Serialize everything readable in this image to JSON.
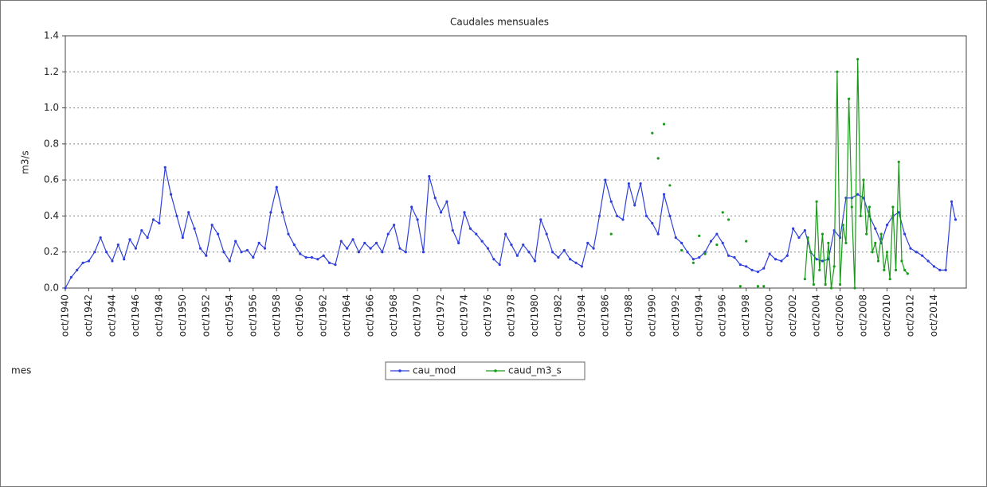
{
  "chart_data": {
    "type": "line",
    "title": "Caudales mensuales",
    "x_label": "mes",
    "y_label": "m3/s",
    "xlim": [
      "1940-10",
      "2017-07"
    ],
    "ylim": [
      0,
      1.4
    ],
    "yticks": [
      {
        "value": 0,
        "label": "0.0"
      },
      0.2,
      0.4,
      0.6,
      0.8,
      {
        "value": 1,
        "label": "1.0"
      },
      1.2,
      1.4
    ],
    "xticks": [
      {
        "value": "1940-10",
        "label": "oct/1940"
      },
      {
        "value": "1942-10",
        "label": "oct/1942"
      },
      {
        "value": "1944-10",
        "label": "oct/1944"
      },
      {
        "value": "1946-10",
        "label": "oct/1946"
      },
      {
        "value": "1948-10",
        "label": "oct/1948"
      },
      {
        "value": "1950-10",
        "label": "oct/1950"
      },
      {
        "value": "1952-10",
        "label": "oct/1952"
      },
      {
        "value": "1954-10",
        "label": "oct/1954"
      },
      {
        "value": "1956-10",
        "label": "oct/1956"
      },
      {
        "value": "1958-10",
        "label": "oct/1958"
      },
      {
        "value": "1960-10",
        "label": "oct/1960"
      },
      {
        "value": "1962-10",
        "label": "oct/1962"
      },
      {
        "value": "1964-10",
        "label": "oct/1964"
      },
      {
        "value": "1966-10",
        "label": "oct/1966"
      },
      {
        "value": "1968-10",
        "label": "oct/1968"
      },
      {
        "value": "1970-10",
        "label": "oct/1970"
      },
      {
        "value": "1972-10",
        "label": "oct/1972"
      },
      {
        "value": "1974-10",
        "label": "oct/1974"
      },
      {
        "value": "1976-10",
        "label": "oct/1976"
      },
      {
        "value": "1978-10",
        "label": "oct/1978"
      },
      {
        "value": "1980-10",
        "label": "oct/1980"
      },
      {
        "value": "1982-10",
        "label": "oct/1982"
      },
      {
        "value": "1984-10",
        "label": "oct/1984"
      },
      {
        "value": "1986-10",
        "label": "oct/1986"
      },
      {
        "value": "1988-10",
        "label": "oct/1988"
      },
      {
        "value": "1990-10",
        "label": "oct/1990"
      },
      {
        "value": "1992-10",
        "label": "oct/1992"
      },
      {
        "value": "1994-10",
        "label": "oct/1994"
      },
      {
        "value": "1996-10",
        "label": "oct/1996"
      },
      {
        "value": "1998-10",
        "label": "oct/1998"
      },
      {
        "value": "2000-10",
        "label": "oct/2000"
      },
      {
        "value": "2002-10",
        "label": "oct/2002"
      },
      {
        "value": "2004-10",
        "label": "oct/2004"
      },
      {
        "value": "2006-10",
        "label": "oct/2006"
      },
      {
        "value": "2008-10",
        "label": "oct/2008"
      },
      {
        "value": "2010-10",
        "label": "oct/2010"
      },
      {
        "value": "2012-10",
        "label": "oct/2012"
      },
      {
        "value": "2014-10",
        "label": "oct/2014"
      }
    ],
    "grid": true,
    "legend": "bottom",
    "series": [
      {
        "name": "cau_mod",
        "color": "#2f3fdc",
        "x": [
          "1940-10",
          "1941-04",
          "1941-10",
          "1942-04",
          "1942-10",
          "1943-04",
          "1943-10",
          "1944-04",
          "1944-10",
          "1945-04",
          "1945-10",
          "1946-04",
          "1946-10",
          "1947-04",
          "1947-10",
          "1948-04",
          "1948-10",
          "1949-04",
          "1949-10",
          "1950-04",
          "1950-10",
          "1951-04",
          "1951-10",
          "1952-04",
          "1952-10",
          "1953-04",
          "1953-10",
          "1954-04",
          "1954-10",
          "1955-04",
          "1955-10",
          "1956-04",
          "1956-10",
          "1957-04",
          "1957-10",
          "1958-04",
          "1958-10",
          "1959-04",
          "1959-10",
          "1960-04",
          "1960-10",
          "1961-04",
          "1961-10",
          "1962-04",
          "1962-10",
          "1963-04",
          "1963-10",
          "1964-04",
          "1964-10",
          "1965-04",
          "1965-10",
          "1966-04",
          "1966-10",
          "1967-04",
          "1967-10",
          "1968-04",
          "1968-10",
          "1969-04",
          "1969-10",
          "1970-04",
          "1970-10",
          "1971-04",
          "1971-10",
          "1972-04",
          "1972-10",
          "1973-04",
          "1973-10",
          "1974-04",
          "1974-10",
          "1975-04",
          "1975-10",
          "1976-04",
          "1976-10",
          "1977-04",
          "1977-10",
          "1978-04",
          "1978-10",
          "1979-04",
          "1979-10",
          "1980-04",
          "1980-10",
          "1981-04",
          "1981-10",
          "1982-04",
          "1982-10",
          "1983-04",
          "1983-10",
          "1984-04",
          "1984-10",
          "1985-04",
          "1985-10",
          "1986-04",
          "1986-10",
          "1987-04",
          "1987-10",
          "1988-04",
          "1988-10",
          "1989-04",
          "1989-10",
          "1990-04",
          "1990-10",
          "1991-04",
          "1991-10",
          "1992-04",
          "1992-10",
          "1993-04",
          "1993-10",
          "1994-04",
          "1994-10",
          "1995-04",
          "1995-10",
          "1996-04",
          "1996-10",
          "1997-04",
          "1997-10",
          "1998-04",
          "1998-10",
          "1999-04",
          "1999-10",
          "2000-04",
          "2000-10",
          "2001-04",
          "2001-10",
          "2002-04",
          "2002-10",
          "2003-04",
          "2003-10",
          "2004-04",
          "2004-10",
          "2005-04",
          "2005-10",
          "2006-04",
          "2006-10",
          "2007-04",
          "2007-10",
          "2008-04",
          "2008-10",
          "2009-04",
          "2009-10",
          "2010-04",
          "2010-10",
          "2011-04",
          "2011-10",
          "2012-04",
          "2012-10",
          "2013-04",
          "2013-10",
          "2014-04",
          "2014-10",
          "2015-04",
          "2015-10",
          "2016-04",
          "2016-08"
        ],
        "values": [
          0.0,
          0.06,
          0.1,
          0.14,
          0.15,
          0.2,
          0.28,
          0.2,
          0.15,
          0.24,
          0.16,
          0.27,
          0.22,
          0.32,
          0.28,
          0.38,
          0.36,
          0.67,
          0.52,
          0.4,
          0.28,
          0.42,
          0.33,
          0.22,
          0.18,
          0.35,
          0.3,
          0.2,
          0.15,
          0.26,
          0.2,
          0.21,
          0.17,
          0.25,
          0.22,
          0.42,
          0.56,
          0.42,
          0.3,
          0.24,
          0.19,
          0.17,
          0.17,
          0.16,
          0.18,
          0.14,
          0.13,
          0.26,
          0.22,
          0.27,
          0.2,
          0.25,
          0.22,
          0.25,
          0.2,
          0.3,
          0.35,
          0.22,
          0.2,
          0.45,
          0.38,
          0.2,
          0.62,
          0.5,
          0.42,
          0.48,
          0.32,
          0.25,
          0.42,
          0.33,
          0.3,
          0.26,
          0.22,
          0.16,
          0.13,
          0.3,
          0.24,
          0.18,
          0.24,
          0.2,
          0.15,
          0.38,
          0.3,
          0.2,
          0.17,
          0.21,
          0.16,
          0.14,
          0.12,
          0.25,
          0.22,
          0.4,
          0.6,
          0.48,
          0.4,
          0.38,
          0.58,
          0.46,
          0.58,
          0.4,
          0.36,
          0.3,
          0.52,
          0.4,
          0.28,
          0.25,
          0.2,
          0.16,
          0.17,
          0.2,
          0.26,
          0.3,
          0.25,
          0.18,
          0.17,
          0.13,
          0.12,
          0.1,
          0.09,
          0.11,
          0.19,
          0.16,
          0.15,
          0.18,
          0.33,
          0.28,
          0.32,
          0.2,
          0.16,
          0.15,
          0.16,
          0.32,
          0.28,
          0.5,
          0.5,
          0.52,
          0.5,
          0.4,
          0.33,
          0.25,
          0.35,
          0.4,
          0.42,
          0.3,
          0.22,
          0.2,
          0.18,
          0.15,
          0.12,
          0.1,
          0.1,
          0.48,
          0.38
        ]
      },
      {
        "name": "caud_m3_s",
        "color": "#1a9a1a",
        "x": [
          "1987-04",
          "1987-07",
          "1990-10",
          "1991-01",
          "1991-04",
          "1991-07",
          "1991-10",
          "1992-01",
          "1992-04",
          "1992-07",
          "1993-04",
          "1993-07",
          "1994-04",
          "1994-07",
          "1994-10",
          "1995-01",
          "1995-04",
          "1995-07",
          "1996-04",
          "1996-07",
          "1996-10",
          "1997-01",
          "1997-04",
          "1997-07",
          "1998-04",
          "1998-07",
          "1998-10",
          "1999-01",
          "1999-10",
          "2000-01",
          "2000-04",
          "2000-07",
          "2003-10",
          "2004-01",
          "2004-04",
          "2004-07",
          "2004-10",
          "2005-01",
          "2005-04",
          "2005-07",
          "2005-10",
          "2006-01",
          "2006-04",
          "2006-07",
          "2006-10",
          "2007-01",
          "2007-04",
          "2007-07",
          "2007-10",
          "2008-01",
          "2008-04",
          "2008-07",
          "2008-10",
          "2009-01",
          "2009-04",
          "2009-07",
          "2009-10",
          "2010-01",
          "2010-04",
          "2010-07",
          "2010-10",
          "2011-01",
          "2011-04",
          "2011-07",
          "2011-10",
          "2012-01",
          "2012-04",
          "2012-07"
        ],
        "values": [
          0.3,
          null,
          0.86,
          null,
          0.72,
          null,
          0.91,
          null,
          0.57,
          null,
          0.21,
          null,
          0.14,
          null,
          0.29,
          null,
          0.19,
          null,
          0.24,
          null,
          0.42,
          null,
          0.38,
          null,
          0.01,
          null,
          0.26,
          null,
          0.01,
          null,
          0.01,
          null,
          0.05,
          0.28,
          0.2,
          0.02,
          0.48,
          0.1,
          0.3,
          0.02,
          0.25,
          0.0,
          0.12,
          1.2,
          0.02,
          0.35,
          0.25,
          1.05,
          0.45,
          0.0,
          1.27,
          0.4,
          0.6,
          0.3,
          0.45,
          0.2,
          0.25,
          0.15,
          0.3,
          0.1,
          0.2,
          0.05,
          0.45,
          0.1,
          0.7,
          0.15,
          0.1,
          0.08
        ]
      }
    ]
  }
}
